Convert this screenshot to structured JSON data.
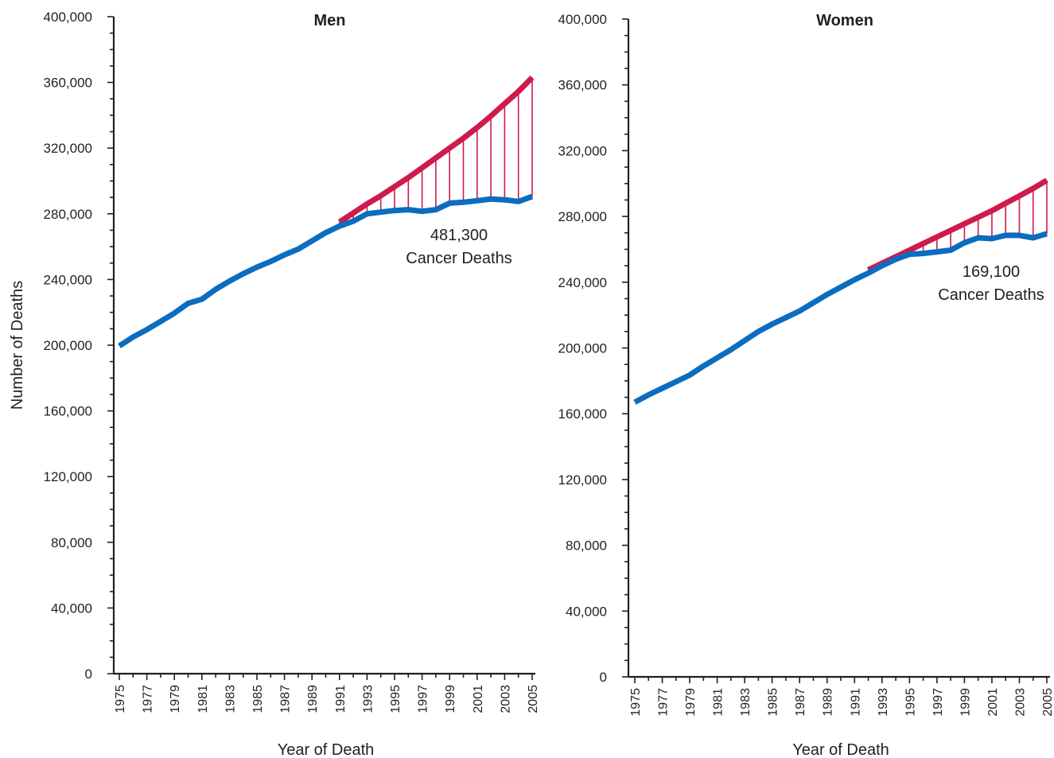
{
  "chart_data": [
    {
      "type": "line",
      "title": "Men",
      "xlabel": "Year of Death",
      "ylabel": "Number of Deaths",
      "ylim": [
        0,
        400000
      ],
      "y_ticks": [
        "0",
        "40,000",
        "80,000",
        "120,000",
        "160,000",
        "200,000",
        "240,000",
        "280,000",
        "320,000",
        "360,000",
        "400,000"
      ],
      "x_ticks": [
        "1975",
        "1977",
        "1979",
        "1981",
        "1983",
        "1985",
        "1987",
        "1989",
        "1991",
        "1993",
        "1995",
        "1997",
        "1999",
        "2001",
        "2003",
        "2005"
      ],
      "series": [
        {
          "color": "#0b6dbf",
          "x": [
            1975,
            1976,
            1977,
            1978,
            1979,
            1980,
            1981,
            1982,
            1983,
            1984,
            1985,
            1986,
            1987,
            1988,
            1989,
            1990,
            1991,
            1992,
            1993,
            1994,
            1995,
            1996,
            1997,
            1998,
            1999,
            2000,
            2001,
            2002,
            2003,
            2004,
            2005
          ],
          "values": [
            199500,
            205000,
            209500,
            214500,
            219500,
            225500,
            228000,
            234000,
            239000,
            243500,
            247500,
            251000,
            255000,
            258500,
            263500,
            268500,
            272500,
            275500,
            280000,
            281000,
            282000,
            282500,
            281500,
            282500,
            286500,
            287000,
            288000,
            289000,
            288500,
            287500,
            290500
          ]
        },
        {
          "color": "#cf1a4c",
          "x": [
            1991,
            1992,
            1993,
            1994,
            1995,
            1996,
            1997,
            1998,
            1999,
            2000,
            2001,
            2002,
            2003,
            2004,
            2005
          ],
          "values": [
            275000,
            280500,
            286000,
            291000,
            296500,
            302000,
            308000,
            314000,
            320000,
            326000,
            332500,
            339500,
            347000,
            354500,
            363000
          ]
        }
      ],
      "annotations": [
        "481,300",
        "Cancer Deaths"
      ]
    },
    {
      "type": "line",
      "title": "Women",
      "xlabel": "Year of Death",
      "ylabel": "",
      "ylim": [
        0,
        400000
      ],
      "y_ticks": [
        "0",
        "40,000",
        "80,000",
        "120,000",
        "160,000",
        "200,000",
        "240,000",
        "280,000",
        "320,000",
        "360,000",
        "400,000"
      ],
      "x_ticks": [
        "1975",
        "1977",
        "1979",
        "1981",
        "1983",
        "1985",
        "1987",
        "1989",
        "1991",
        "1993",
        "1995",
        "1997",
        "1999",
        "2001",
        "2003",
        "2005"
      ],
      "series": [
        {
          "color": "#0b6dbf",
          "x": [
            1975,
            1976,
            1977,
            1978,
            1979,
            1980,
            1981,
            1982,
            1983,
            1984,
            1985,
            1986,
            1987,
            1988,
            1989,
            1990,
            1991,
            1992,
            1993,
            1994,
            1995,
            1996,
            1997,
            1998,
            1999,
            2000,
            2001,
            2002,
            2003,
            2004,
            2005
          ],
          "values": [
            167000,
            171500,
            175500,
            179500,
            183500,
            189000,
            194000,
            199000,
            204500,
            210000,
            214500,
            218500,
            222500,
            227500,
            232500,
            237000,
            241500,
            245500,
            250000,
            254000,
            257000,
            257500,
            258500,
            259500,
            264000,
            267000,
            266500,
            268500,
            268500,
            267000,
            269500
          ]
        },
        {
          "color": "#cf1a4c",
          "x": [
            1992,
            1993,
            1994,
            1995,
            1996,
            1997,
            1998,
            1999,
            2000,
            2001,
            2002,
            2003,
            2004,
            2005
          ],
          "values": [
            247500,
            251500,
            255500,
            259500,
            263500,
            267500,
            271500,
            275500,
            279500,
            283500,
            288000,
            292500,
            297000,
            302000
          ]
        }
      ],
      "annotations": [
        "169,100",
        "Cancer Deaths"
      ]
    }
  ]
}
